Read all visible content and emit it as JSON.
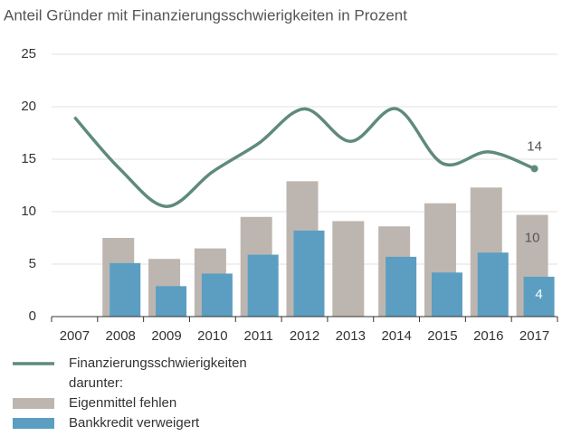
{
  "chart_data": {
    "type": "bar_line",
    "title": "Anteil Gründer mit Finanzierungsschwierigkeiten in Prozent",
    "categories": [
      "2007",
      "2008",
      "2009",
      "2010",
      "2011",
      "2012",
      "2013",
      "2014",
      "2015",
      "2016",
      "2017"
    ],
    "series": [
      {
        "name": "Finanzierungsschwierigkeiten",
        "color": "#5f8a7c",
        "kind": "line",
        "values": [
          19,
          14,
          10.5,
          13.8,
          16.5,
          19.8,
          16.7,
          19.8,
          14.6,
          15.7,
          14.1
        ],
        "value_labels": [
          null,
          null,
          null,
          null,
          null,
          null,
          null,
          null,
          null,
          null,
          "14"
        ]
      },
      {
        "name": "Eigenmittel fehlen",
        "color": "#bdb6b0",
        "kind": "bar",
        "values": [
          null,
          7.5,
          5.5,
          6.5,
          9.5,
          12.9,
          9.1,
          8.6,
          10.8,
          12.3,
          9.7
        ],
        "value_labels": [
          null,
          null,
          null,
          null,
          null,
          null,
          null,
          null,
          null,
          null,
          "10"
        ]
      },
      {
        "name": "Bankkredit verweigert",
        "color": "#5b9ec2",
        "kind": "bar",
        "values": [
          null,
          5.1,
          2.9,
          4.1,
          5.9,
          8.2,
          null,
          5.7,
          4.2,
          6.1,
          3.8
        ],
        "value_labels": [
          null,
          null,
          null,
          null,
          null,
          null,
          null,
          null,
          null,
          null,
          "4"
        ]
      }
    ],
    "legend_subheading": "darunter:",
    "ylim": [
      0,
      25
    ],
    "yticks": [
      0,
      5,
      10,
      15,
      20,
      25
    ],
    "grid": true
  }
}
